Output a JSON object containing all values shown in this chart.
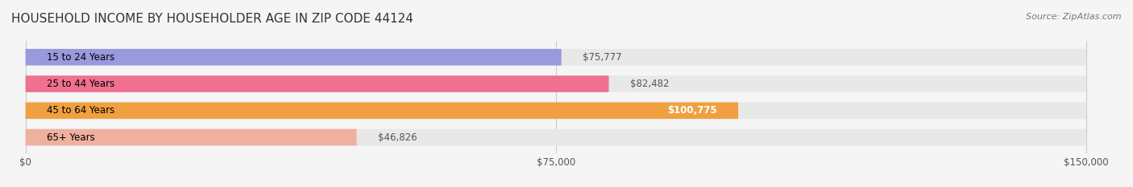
{
  "title": "HOUSEHOLD INCOME BY HOUSEHOLDER AGE IN ZIP CODE 44124",
  "source": "Source: ZipAtlas.com",
  "categories": [
    "15 to 24 Years",
    "25 to 44 Years",
    "45 to 64 Years",
    "65+ Years"
  ],
  "values": [
    75777,
    82482,
    100775,
    46826
  ],
  "bar_colors": [
    "#9999dd",
    "#f07090",
    "#f0a040",
    "#f0b0a0"
  ],
  "bar_bg_color": "#e8e8e8",
  "value_labels": [
    "$75,777",
    "$82,482",
    "$100,775",
    "$46,826"
  ],
  "x_ticks": [
    0,
    75000,
    150000
  ],
  "x_tick_labels": [
    "$0",
    "$75,000",
    "$150,000"
  ],
  "x_max": 150000,
  "title_fontsize": 11,
  "source_fontsize": 8,
  "label_fontsize": 8.5,
  "value_fontsize": 8.5,
  "tick_fontsize": 8.5,
  "background_color": "#f5f5f5"
}
